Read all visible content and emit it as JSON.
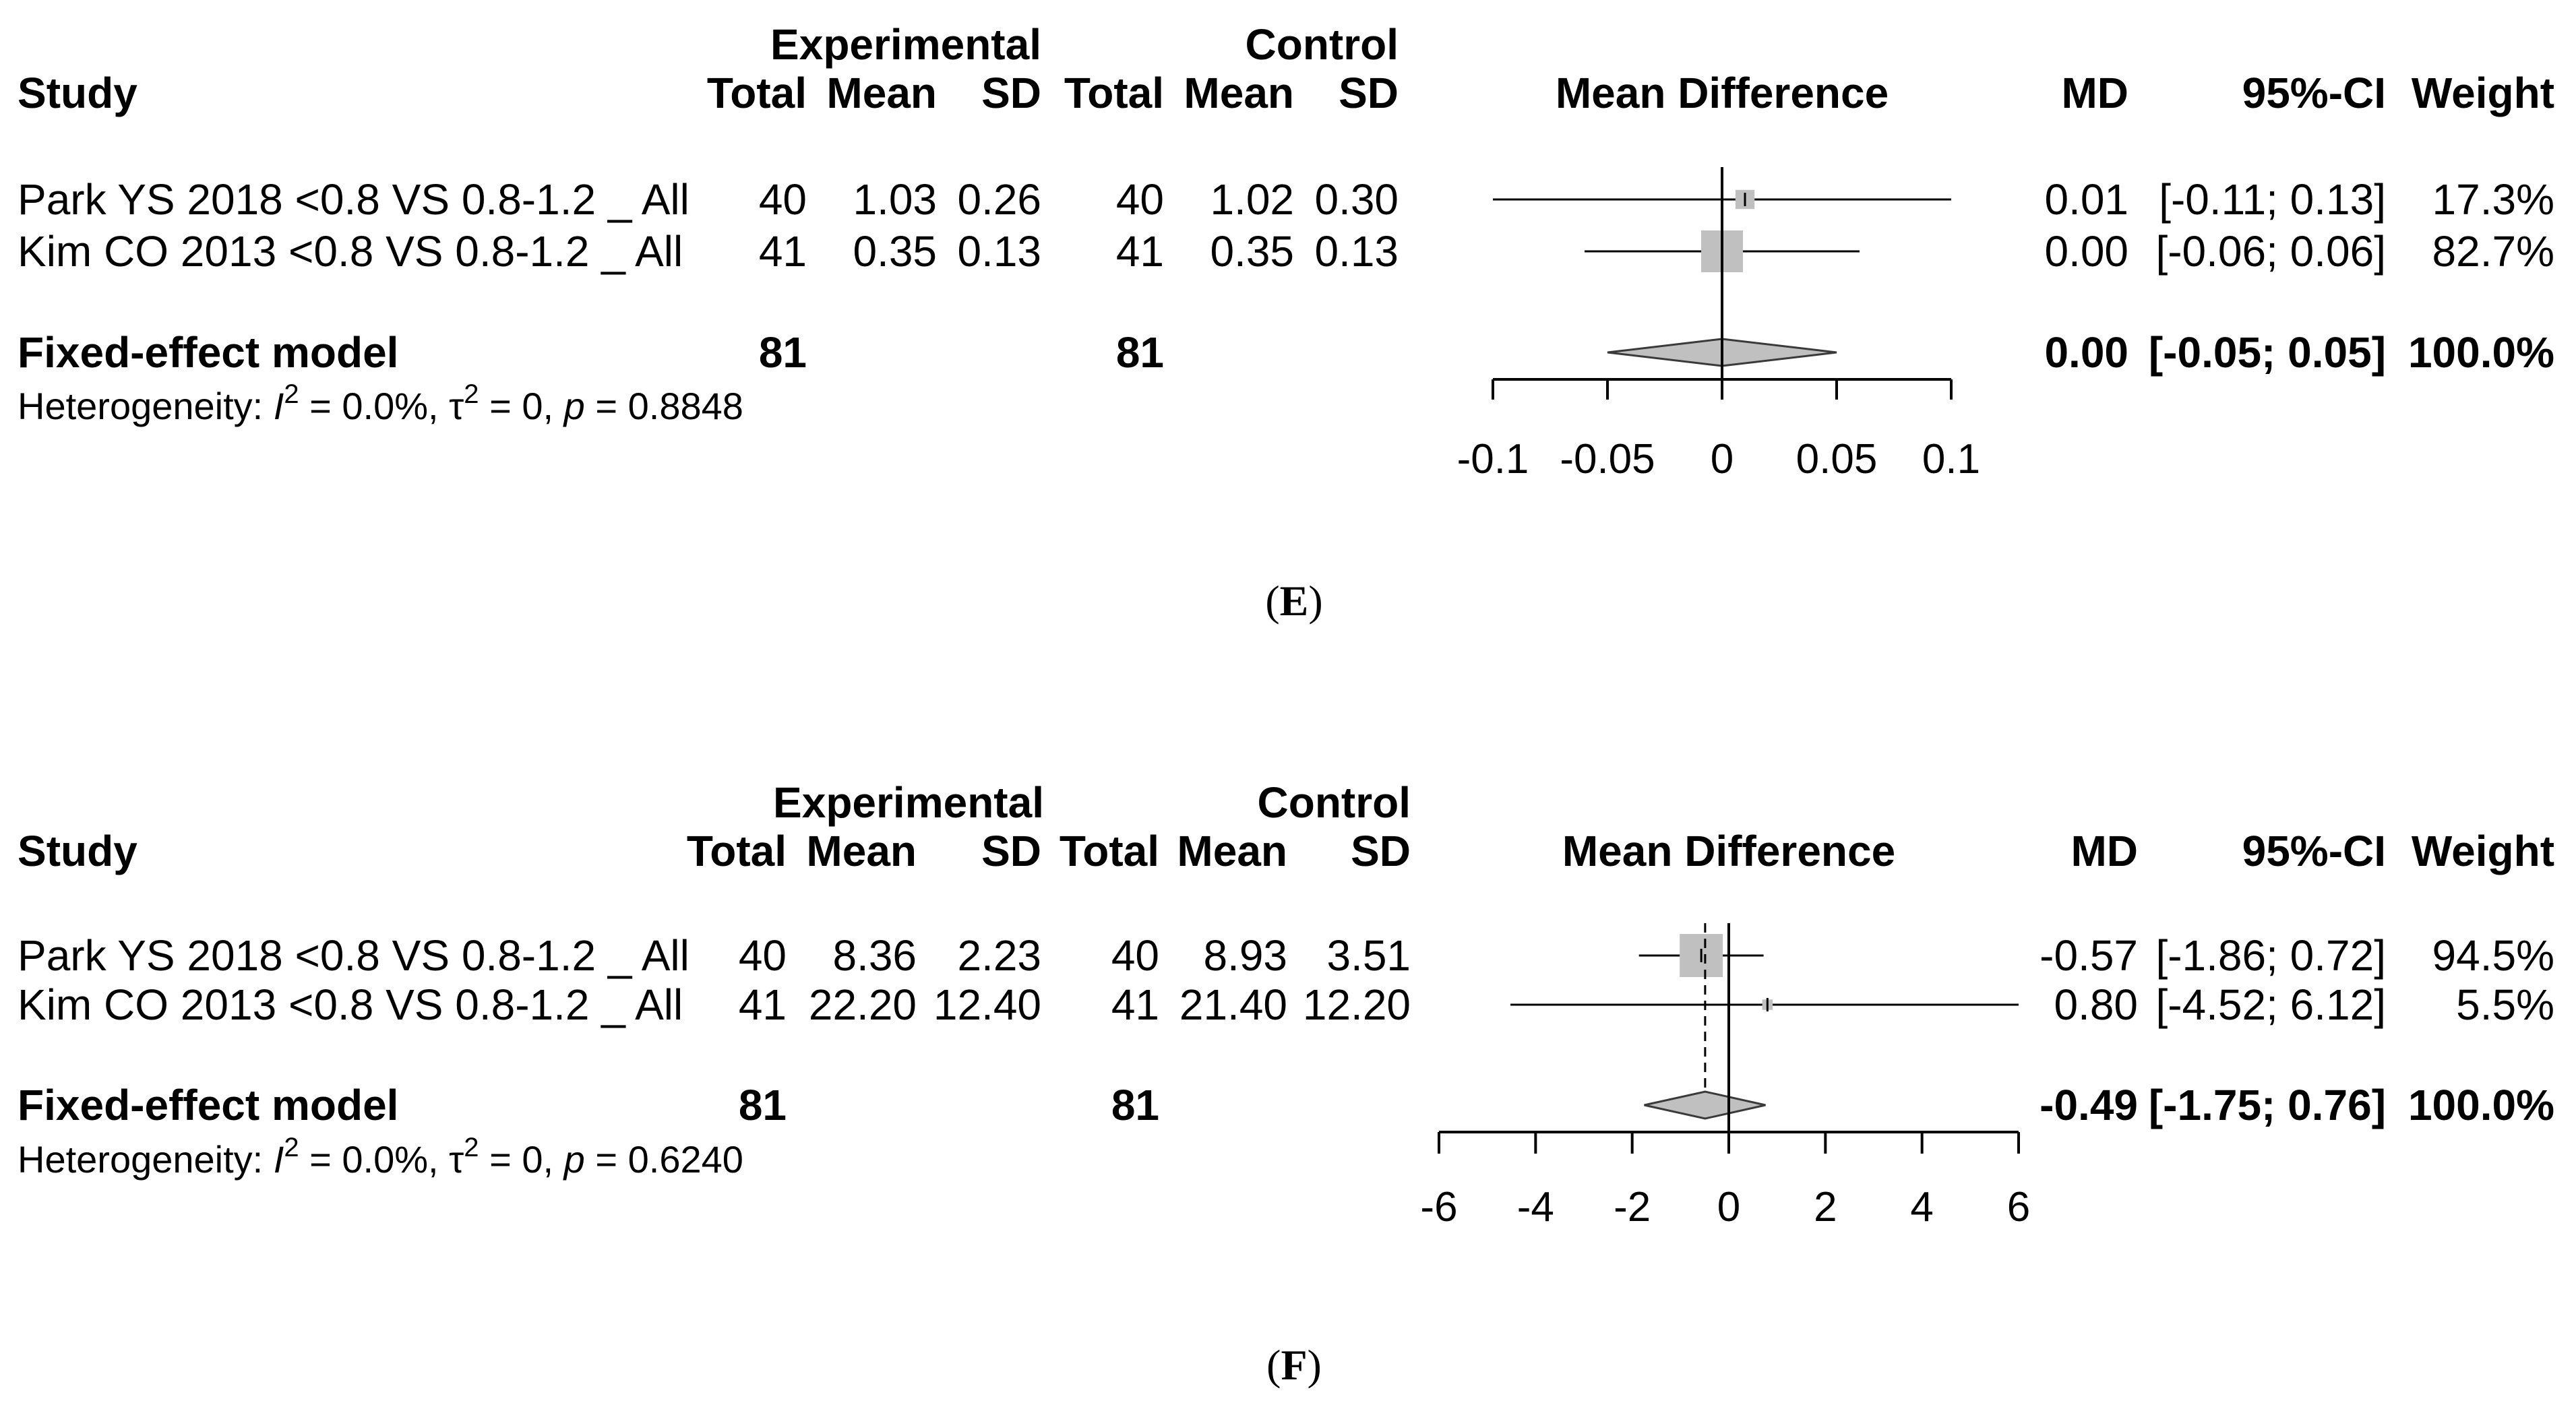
{
  "chart_data": [
    {
      "type": "forest",
      "caption_letter": "E",
      "headers": {
        "group_experimental": "Experimental",
        "group_control": "Control",
        "study": "Study",
        "total": "Total",
        "mean": "Mean",
        "sd": "SD",
        "plot_title": "Mean Difference",
        "md": "MD",
        "ci": "95%-CI",
        "weight": "Weight"
      },
      "studies": [
        {
          "name": "Park YS  2018 <0.8 VS 0.8-1.2 _ All",
          "exp_total": "40",
          "exp_mean": "1.03",
          "exp_sd": "0.26",
          "ctrl_total": "40",
          "ctrl_mean": "1.02",
          "ctrl_sd": "0.30",
          "md": 0.01,
          "lower": -0.11,
          "upper": 0.13,
          "md_text": "0.01",
          "ci_text": "[-0.11; 0.13]",
          "weight_text": "17.3%",
          "weight": 17.3
        },
        {
          "name": "Kim CO  2013 <0.8 VS 0.8-1.2 _ All",
          "exp_total": "41",
          "exp_mean": "0.35",
          "exp_sd": "0.13",
          "ctrl_total": "41",
          "ctrl_mean": "0.35",
          "ctrl_sd": "0.13",
          "md": 0.0,
          "lower": -0.06,
          "upper": 0.06,
          "md_text": "0.00",
          "ci_text": "[-0.06; 0.06]",
          "weight_text": "82.7%",
          "weight": 82.7
        }
      ],
      "pooled": {
        "label": "Fixed-effect model",
        "exp_total": "81",
        "ctrl_total": "81",
        "md": 0.0,
        "lower": -0.05,
        "upper": 0.05,
        "md_text": "0.00",
        "ci_text": "[-0.05; 0.05]",
        "weight_text": "100.0%"
      },
      "heterogeneity": {
        "prefix": "Heterogeneity: ",
        "i2_sym": "I",
        "i2_rest": " = 0.0%, ",
        "tau_sym": "τ",
        "tau_rest": " = 0, ",
        "p_sym": "p",
        "p_rest": " = 0.8848"
      },
      "xlim": [
        -0.1,
        0.1
      ],
      "ticks": [
        -0.1,
        -0.05,
        0,
        0.05,
        0.1
      ],
      "tick_labels": [
        "-0.1",
        "-0.05",
        "0",
        "0.05",
        "0.1"
      ],
      "colors": {
        "box": "#c0c0c0",
        "line": "#000000"
      }
    },
    {
      "type": "forest",
      "caption_letter": "F",
      "headers": {
        "group_experimental": "Experimental",
        "group_control": "Control",
        "study": "Study",
        "total": "Total",
        "mean": "Mean",
        "sd": "SD",
        "plot_title": "Mean Difference",
        "md": "MD",
        "ci": "95%-CI",
        "weight": "Weight"
      },
      "studies": [
        {
          "name": "Park YS  2018 <0.8 VS 0.8-1.2 _ All",
          "exp_total": "40",
          "exp_mean": "8.36",
          "exp_sd": "2.23",
          "ctrl_total": "40",
          "ctrl_mean": "8.93",
          "ctrl_sd": "3.51",
          "md": -0.57,
          "lower": -1.86,
          "upper": 0.72,
          "md_text": "-0.57",
          "ci_text": "[-1.86; 0.72]",
          "weight_text": "94.5%",
          "weight": 94.5
        },
        {
          "name": "Kim CO  2013 <0.8 VS 0.8-1.2 _ All",
          "exp_total": "41",
          "exp_mean": "22.20",
          "exp_sd": "12.40",
          "ctrl_total": "41",
          "ctrl_mean": "21.40",
          "ctrl_sd": "12.20",
          "md": 0.8,
          "lower": -4.52,
          "upper": 6.12,
          "md_text": "0.80",
          "ci_text": "[-4.52; 6.12]",
          "weight_text": "5.5%",
          "weight": 5.5
        }
      ],
      "pooled": {
        "label": "Fixed-effect model",
        "exp_total": "81",
        "ctrl_total": "81",
        "md": -0.49,
        "lower": -1.75,
        "upper": 0.76,
        "md_text": "-0.49",
        "ci_text": "[-1.75; 0.76]",
        "weight_text": "100.0%"
      },
      "heterogeneity": {
        "prefix": "Heterogeneity: ",
        "i2_sym": "I",
        "i2_rest": " = 0.0%, ",
        "tau_sym": "τ",
        "tau_rest": " = 0, ",
        "p_sym": "p",
        "p_rest": " = 0.6240"
      },
      "xlim": [
        -6,
        6
      ],
      "ticks": [
        -6,
        -4,
        -2,
        0,
        2,
        4,
        6
      ],
      "tick_labels": [
        "-6",
        "-4",
        "-2",
        "0",
        "2",
        "4",
        "6"
      ],
      "colors": {
        "box": "#c0c0c0",
        "line": "#000000"
      }
    }
  ]
}
